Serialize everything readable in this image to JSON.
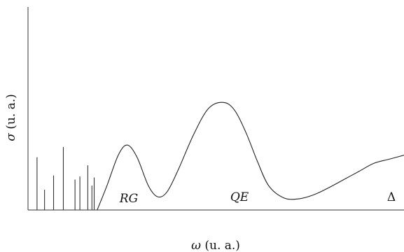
{
  "chart_data": {
    "type": "line",
    "title": "",
    "xlabel": {
      "symbol": "ω",
      "unit": " (u. a.)"
    },
    "ylabel": {
      "symbol": "σ",
      "unit": " (u. a.)"
    },
    "xlim": [
      0,
      1
    ],
    "ylim": [
      0,
      1
    ],
    "grid": false,
    "legend": "none",
    "ticks": "none",
    "discrete_lines": {
      "name": "",
      "x": [
        0.024,
        0.044,
        0.068,
        0.094,
        0.125,
        0.138,
        0.159,
        0.17,
        0.176
      ],
      "y": [
        0.26,
        0.1,
        0.17,
        0.31,
        0.15,
        0.165,
        0.22,
        0.12,
        0.16
      ]
    },
    "series": [
      {
        "name": "",
        "x": [
          0.184,
          0.21,
          0.24,
          0.264,
          0.29,
          0.32,
          0.345,
          0.37,
          0.4,
          0.44,
          0.48,
          0.52,
          0.55,
          0.58,
          0.61,
          0.64,
          0.68,
          0.72,
          0.76,
          0.8,
          0.84,
          0.88,
          0.92,
          0.96,
          1.0
        ],
        "y": [
          0.0,
          0.12,
          0.27,
          0.32,
          0.26,
          0.12,
          0.065,
          0.09,
          0.2,
          0.37,
          0.5,
          0.53,
          0.49,
          0.38,
          0.24,
          0.12,
          0.06,
          0.055,
          0.075,
          0.11,
          0.15,
          0.19,
          0.23,
          0.25,
          0.27
        ]
      }
    ],
    "annotations": [
      {
        "id": "rg",
        "text": "RG",
        "x": 0.27
      },
      {
        "id": "qe",
        "text": "QE",
        "x": 0.56
      },
      {
        "id": "delta",
        "text": "Δ",
        "x": 0.965
      }
    ]
  }
}
